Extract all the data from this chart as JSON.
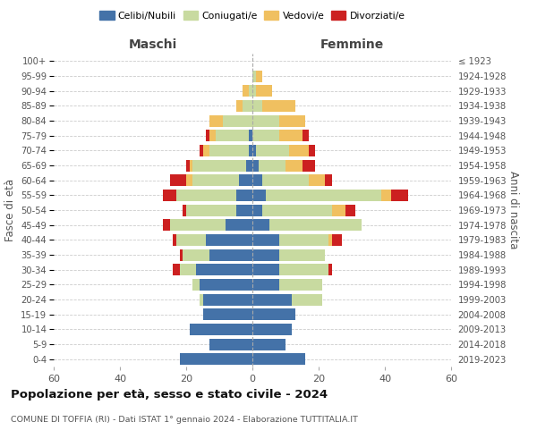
{
  "age_groups": [
    "0-4",
    "5-9",
    "10-14",
    "15-19",
    "20-24",
    "25-29",
    "30-34",
    "35-39",
    "40-44",
    "45-49",
    "50-54",
    "55-59",
    "60-64",
    "65-69",
    "70-74",
    "75-79",
    "80-84",
    "85-89",
    "90-94",
    "95-99",
    "100+"
  ],
  "birth_years": [
    "2019-2023",
    "2014-2018",
    "2009-2013",
    "2004-2008",
    "1999-2003",
    "1994-1998",
    "1989-1993",
    "1984-1988",
    "1979-1983",
    "1974-1978",
    "1969-1973",
    "1964-1968",
    "1959-1963",
    "1954-1958",
    "1949-1953",
    "1944-1948",
    "1939-1943",
    "1934-1938",
    "1929-1933",
    "1924-1928",
    "≤ 1923"
  ],
  "maschi": {
    "celibi": [
      22,
      13,
      19,
      15,
      15,
      16,
      17,
      13,
      14,
      8,
      5,
      5,
      4,
      2,
      1,
      1,
      0,
      0,
      0,
      0,
      0
    ],
    "coniugati": [
      0,
      0,
      0,
      0,
      1,
      2,
      5,
      8,
      9,
      17,
      15,
      18,
      14,
      16,
      12,
      10,
      9,
      3,
      1,
      0,
      0
    ],
    "vedovi": [
      0,
      0,
      0,
      0,
      0,
      0,
      0,
      0,
      0,
      0,
      0,
      0,
      2,
      1,
      2,
      2,
      4,
      2,
      2,
      0,
      0
    ],
    "divorziati": [
      0,
      0,
      0,
      0,
      0,
      0,
      2,
      1,
      1,
      2,
      1,
      4,
      5,
      1,
      1,
      1,
      0,
      0,
      0,
      0,
      0
    ]
  },
  "femmine": {
    "nubili": [
      16,
      10,
      12,
      13,
      12,
      8,
      8,
      8,
      8,
      5,
      3,
      4,
      3,
      2,
      1,
      0,
      0,
      0,
      0,
      0,
      0
    ],
    "coniugate": [
      0,
      0,
      0,
      0,
      9,
      13,
      15,
      14,
      15,
      28,
      21,
      35,
      14,
      8,
      10,
      8,
      8,
      3,
      1,
      1,
      0
    ],
    "vedove": [
      0,
      0,
      0,
      0,
      0,
      0,
      0,
      0,
      1,
      0,
      4,
      3,
      5,
      5,
      6,
      7,
      8,
      10,
      5,
      2,
      0
    ],
    "divorziate": [
      0,
      0,
      0,
      0,
      0,
      0,
      1,
      0,
      3,
      0,
      3,
      5,
      2,
      4,
      2,
      2,
      0,
      0,
      0,
      0,
      0
    ]
  },
  "colors": {
    "celibi": "#4472a8",
    "coniugati": "#c8daa0",
    "vedovi": "#f0c060",
    "divorziati": "#cc2020"
  },
  "xlim": 60,
  "title": "Popolazione per età, sesso e stato civile - 2024",
  "subtitle": "COMUNE DI TOFFIA (RI) - Dati ISTAT 1° gennaio 2024 - Elaborazione TUTTITALIA.IT",
  "ylabel_left": "Fasce di età",
  "ylabel_right": "Anni di nascita",
  "xlabel_left": "Maschi",
  "xlabel_right": "Femmine"
}
